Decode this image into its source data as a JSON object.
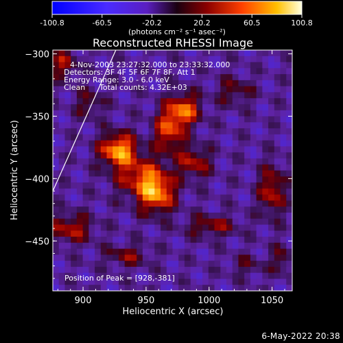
{
  "chart_data": {
    "type": "heatmap",
    "title": "Reconstructed RHESSI Image",
    "xlabel": "Heliocentric X (arcsec)",
    "ylabel": "Heliocentric Y (arcsec)",
    "xlim": [
      876,
      1066
    ],
    "ylim": [
      -490,
      -297
    ],
    "x_ticks": [
      900,
      950,
      1000,
      1050
    ],
    "y_ticks": [
      -300,
      -350,
      -400,
      -450
    ],
    "colorbar": {
      "unit": "(photons cm⁻² s⁻¹ asec⁻²)",
      "range": [
        -100.8,
        100.8
      ],
      "ticks": [
        -100.8,
        -60.5,
        -20.2,
        20.2,
        60.5,
        100.8
      ]
    },
    "annotations": {
      "time": "4-Nov-2003 23:27:32.000 to 23:33:32.000",
      "detectors": "Detectors: 3F 4F 5F 6F 7F 8F, Att 1",
      "energy": "Energy Range: 3.0 - 6.0 keV",
      "method": "Clean",
      "counts": "Total counts: 4.32E+03",
      "peak": "Position of Peak = [928,-381]"
    },
    "peak": [
      928,
      -381
    ],
    "sources": [
      {
        "x": 928,
        "y": -377,
        "amp": 100,
        "sx": 10,
        "sy": 9
      },
      {
        "x": 945,
        "y": -398,
        "amp": 60,
        "sx": 14,
        "sy": 11
      },
      {
        "x": 958,
        "y": -412,
        "amp": 90,
        "sx": 10,
        "sy": 11
      },
      {
        "x": 968,
        "y": -362,
        "amp": 70,
        "sx": 8,
        "sy": 12
      },
      {
        "x": 980,
        "y": -345,
        "amp": 80,
        "sx": 9,
        "sy": 9
      },
      {
        "x": 988,
        "y": -387,
        "amp": 55,
        "sx": 9,
        "sy": 9
      },
      {
        "x": 1050,
        "y": -410,
        "amp": 60,
        "sx": 7,
        "sy": 14
      },
      {
        "x": 884,
        "y": -308,
        "amp": 50,
        "sx": 8,
        "sy": 8
      },
      {
        "x": 890,
        "y": -440,
        "amp": 55,
        "sx": 12,
        "sy": 8
      },
      {
        "x": 1002,
        "y": -438,
        "amp": 45,
        "sx": 14,
        "sy": 6
      },
      {
        "x": 1020,
        "y": -330,
        "amp": 35,
        "sx": 10,
        "sy": 8
      },
      {
        "x": 905,
        "y": -340,
        "amp": 35,
        "sx": 8,
        "sy": 8
      },
      {
        "x": 935,
        "y": -462,
        "amp": 40,
        "sx": 12,
        "sy": 6
      },
      {
        "x": 1058,
        "y": -465,
        "amp": 35,
        "sx": 6,
        "sy": 8
      },
      {
        "x": 1030,
        "y": -470,
        "amp": 25,
        "sx": 10,
        "sy": 6
      }
    ],
    "limb_line": {
      "x": [
        876,
        926
      ],
      "y": [
        -410,
        -297
      ]
    }
  },
  "footer": {
    "date": "6-May-2022 20:38"
  }
}
